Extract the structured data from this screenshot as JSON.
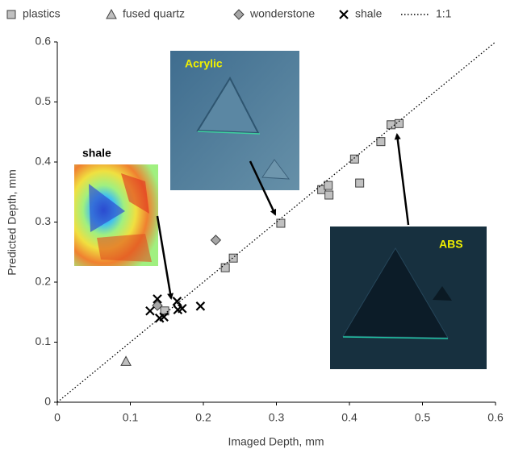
{
  "chart_data": {
    "type": "scatter",
    "xlabel": "Imaged Depth, mm",
    "ylabel": "Predicted Depth, mm",
    "xlim": [
      0,
      0.6
    ],
    "ylim": [
      0,
      0.6
    ],
    "xticks": [
      0,
      0.1,
      0.2,
      0.3,
      0.4,
      0.5,
      0.6
    ],
    "yticks": [
      0,
      0.1,
      0.2,
      0.3,
      0.4,
      0.5,
      0.6
    ],
    "grid": false,
    "legend": "top",
    "annotations": [
      "shale",
      "Acrylic",
      "ABS"
    ],
    "series": [
      {
        "name": "plastics",
        "marker": "square",
        "color": "#c0c0c0",
        "x": [
          0.147,
          0.23,
          0.241,
          0.306,
          0.362,
          0.371,
          0.372,
          0.407,
          0.414,
          0.443,
          0.457,
          0.468
        ],
        "values": [
          0.152,
          0.224,
          0.24,
          0.298,
          0.354,
          0.361,
          0.345,
          0.405,
          0.365,
          0.434,
          0.462,
          0.464
        ]
      },
      {
        "name": "fused quartz",
        "marker": "triangle",
        "color": "#bfbfbf",
        "x": [
          0.094
        ],
        "values": [
          0.068
        ]
      },
      {
        "name": "wonderstone",
        "marker": "diamond",
        "color": "#a6a6a6",
        "x": [
          0.217,
          0.137
        ],
        "values": [
          0.27,
          0.161
        ]
      },
      {
        "name": "shale",
        "marker": "cross",
        "color": "#000000",
        "x": [
          0.137,
          0.127,
          0.14,
          0.146,
          0.164,
          0.165,
          0.171,
          0.196
        ],
        "values": [
          0.172,
          0.152,
          0.14,
          0.142,
          0.168,
          0.154,
          0.156,
          0.16
        ]
      },
      {
        "name": "1:1",
        "marker": "dotted-line",
        "color": "#000000",
        "x": [
          0,
          0.6
        ],
        "values": [
          0,
          0.6
        ]
      }
    ]
  }
}
